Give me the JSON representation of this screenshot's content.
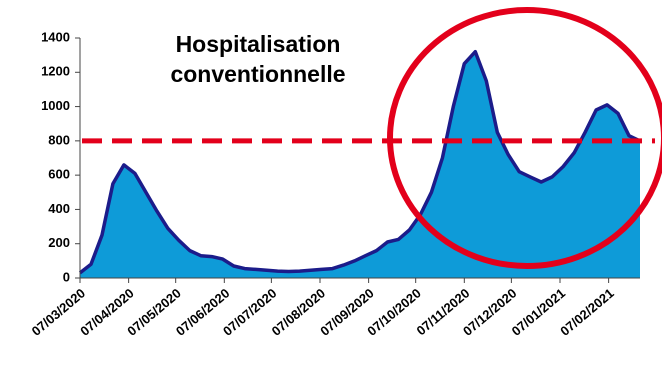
{
  "chart_data": {
    "type": "area",
    "title": "Hospitalisation conventionnelle",
    "x": [
      "07/03/2020",
      "14/03/2020",
      "21/03/2020",
      "28/03/2020",
      "04/04/2020",
      "11/04/2020",
      "18/04/2020",
      "25/04/2020",
      "02/05/2020",
      "09/05/2020",
      "16/05/2020",
      "23/05/2020",
      "30/05/2020",
      "06/06/2020",
      "13/06/2020",
      "20/06/2020",
      "27/06/2020",
      "04/07/2020",
      "11/07/2020",
      "18/07/2020",
      "25/07/2020",
      "01/08/2020",
      "08/08/2020",
      "15/08/2020",
      "22/08/2020",
      "29/08/2020",
      "05/09/2020",
      "12/09/2020",
      "19/09/2020",
      "26/09/2020",
      "03/10/2020",
      "10/10/2020",
      "17/10/2020",
      "24/10/2020",
      "31/10/2020",
      "07/11/2020",
      "14/11/2020",
      "21/11/2020",
      "28/11/2020",
      "05/12/2020",
      "12/12/2020",
      "19/12/2020",
      "26/12/2020",
      "02/01/2021",
      "09/01/2021",
      "16/01/2021",
      "23/01/2021",
      "30/01/2021",
      "06/02/2021",
      "13/02/2021",
      "20/02/2021",
      "27/02/2021"
    ],
    "values": [
      30,
      80,
      250,
      550,
      660,
      610,
      500,
      390,
      290,
      220,
      160,
      130,
      125,
      110,
      70,
      55,
      50,
      45,
      40,
      38,
      40,
      45,
      50,
      55,
      75,
      100,
      130,
      160,
      210,
      225,
      280,
      370,
      500,
      700,
      1000,
      1250,
      1320,
      1150,
      850,
      720,
      620,
      590,
      560,
      590,
      650,
      730,
      850,
      980,
      1010,
      960,
      830,
      800
    ],
    "color": "#0e9bd8",
    "line_color": "#1c1c8a",
    "xlim": [
      "07/03/2020",
      "27/02/2021"
    ],
    "xticks": [
      "07/03/2020",
      "07/04/2020",
      "07/05/2020",
      "07/06/2020",
      "07/07/2020",
      "07/08/2020",
      "07/09/2020",
      "07/10/2020",
      "07/11/2020",
      "07/12/2020",
      "07/01/2021",
      "07/02/2021"
    ],
    "ylim": [
      0,
      1400
    ],
    "yticks": [
      0,
      200,
      400,
      600,
      800,
      1000,
      1200,
      1400
    ],
    "reference_line": {
      "value": 800,
      "color": "#e3001b"
    }
  }
}
